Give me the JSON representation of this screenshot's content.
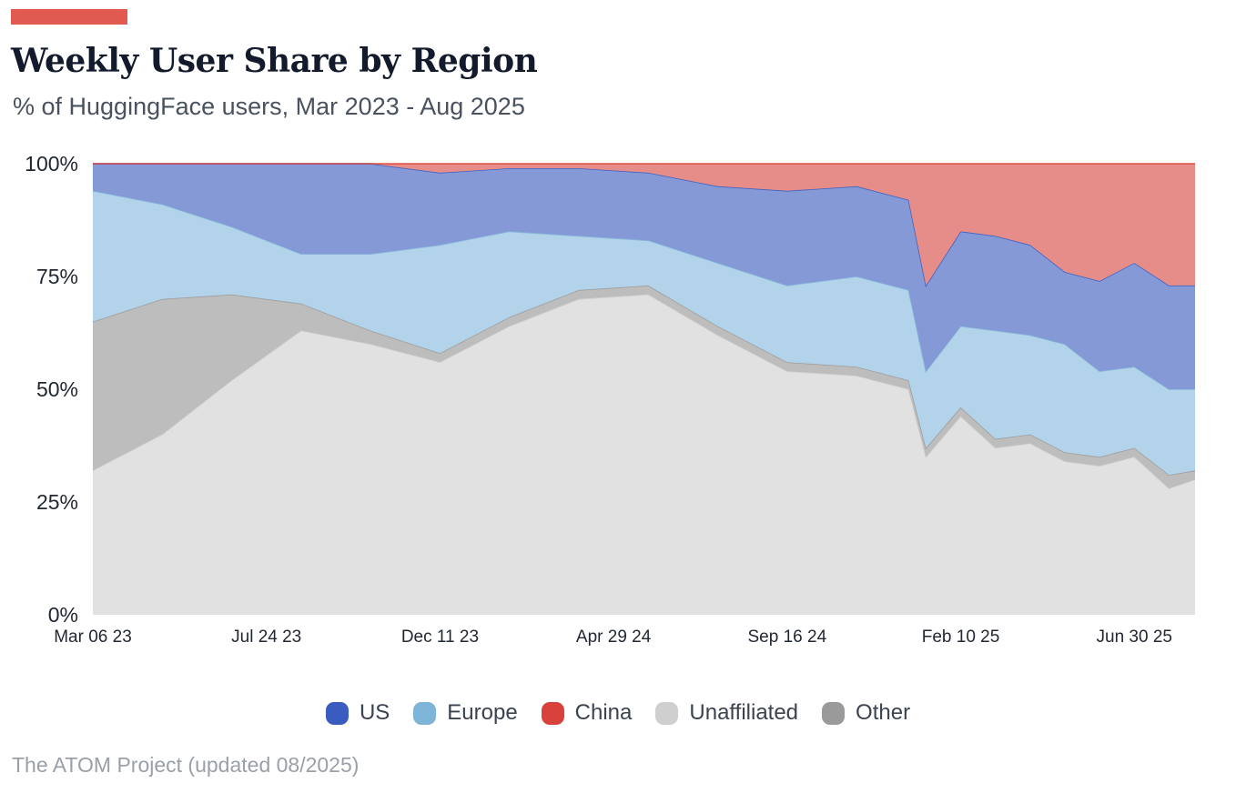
{
  "header": {
    "accent_color": "#e05a50",
    "title": "Weekly User Share by Region",
    "subtitle": "% of HuggingFace users, Mar 2023 - Aug 2025"
  },
  "footer": {
    "source": "The ATOM Project (updated 08/2025)"
  },
  "chart_data": {
    "type": "area",
    "stacked": true,
    "normalized_percent": true,
    "title": "Weekly User Share by Region",
    "subtitle": "% of HuggingFace users, Mar 2023 - Aug 2025",
    "xlabel": "",
    "ylabel": "",
    "ylim": [
      0,
      100
    ],
    "y_ticks": [
      0,
      25,
      50,
      75,
      100
    ],
    "y_tick_labels": [
      "0%",
      "25%",
      "50%",
      "75%",
      "100%"
    ],
    "x_ticks": [
      0,
      20,
      40,
      60,
      80,
      100,
      120
    ],
    "x_tick_labels": [
      "Mar 06 23",
      "Jul 24 23",
      "Dec 11 23",
      "Apr 29 24",
      "Sep 16 24",
      "Feb 10 25",
      "Jun 30 25"
    ],
    "x_unit": "weeks since Mar 06 23",
    "grid": false,
    "legend_position": "bottom-center",
    "stack_order_bottom_to_top": [
      "Unaffiliated",
      "Other",
      "Europe",
      "US",
      "China"
    ],
    "legend_order": [
      "US",
      "Europe",
      "China",
      "Unaffiliated",
      "Other"
    ],
    "colors": {
      "US": "#3a5bbf",
      "Europe": "#7fb4d9",
      "China": "#d8423a",
      "Unaffiliated": "#cfcfcf",
      "Other": "#9a9a9a"
    },
    "fill_colors": {
      "US": "#8499d6",
      "Europe": "#b2d3ea",
      "China": "#e78d89",
      "Unaffiliated": "#e1e1e1",
      "Other": "#bdbdbd"
    },
    "x": [
      0,
      8,
      16,
      24,
      32,
      40,
      48,
      56,
      64,
      72,
      80,
      88,
      94,
      96,
      100,
      104,
      108,
      112,
      116,
      120,
      124,
      127
    ],
    "series": [
      {
        "name": "Unaffiliated",
        "values": [
          32,
          40,
          52,
          63,
          60,
          56,
          64,
          70,
          71,
          62,
          54,
          53,
          50,
          35,
          44,
          37,
          38,
          34,
          33,
          35,
          28,
          30
        ]
      },
      {
        "name": "Other",
        "values": [
          33,
          30,
          19,
          6,
          3,
          2,
          2,
          2,
          2,
          2,
          2,
          2,
          2,
          2,
          2,
          2,
          2,
          2,
          2,
          2,
          3,
          2
        ]
      },
      {
        "name": "Europe",
        "values": [
          29,
          21,
          15,
          11,
          17,
          24,
          19,
          12,
          10,
          14,
          17,
          20,
          20,
          17,
          18,
          24,
          22,
          24,
          19,
          18,
          19,
          18
        ]
      },
      {
        "name": "US",
        "values": [
          6,
          9,
          14,
          20,
          20,
          16,
          14,
          15,
          15,
          17,
          21,
          20,
          20,
          19,
          21,
          21,
          20,
          16,
          20,
          23,
          23,
          23
        ]
      },
      {
        "name": "China",
        "values": [
          0,
          0,
          0,
          0,
          0,
          2,
          1,
          1,
          2,
          5,
          6,
          5,
          8,
          27,
          15,
          16,
          18,
          24,
          26,
          22,
          27,
          27
        ]
      }
    ]
  }
}
